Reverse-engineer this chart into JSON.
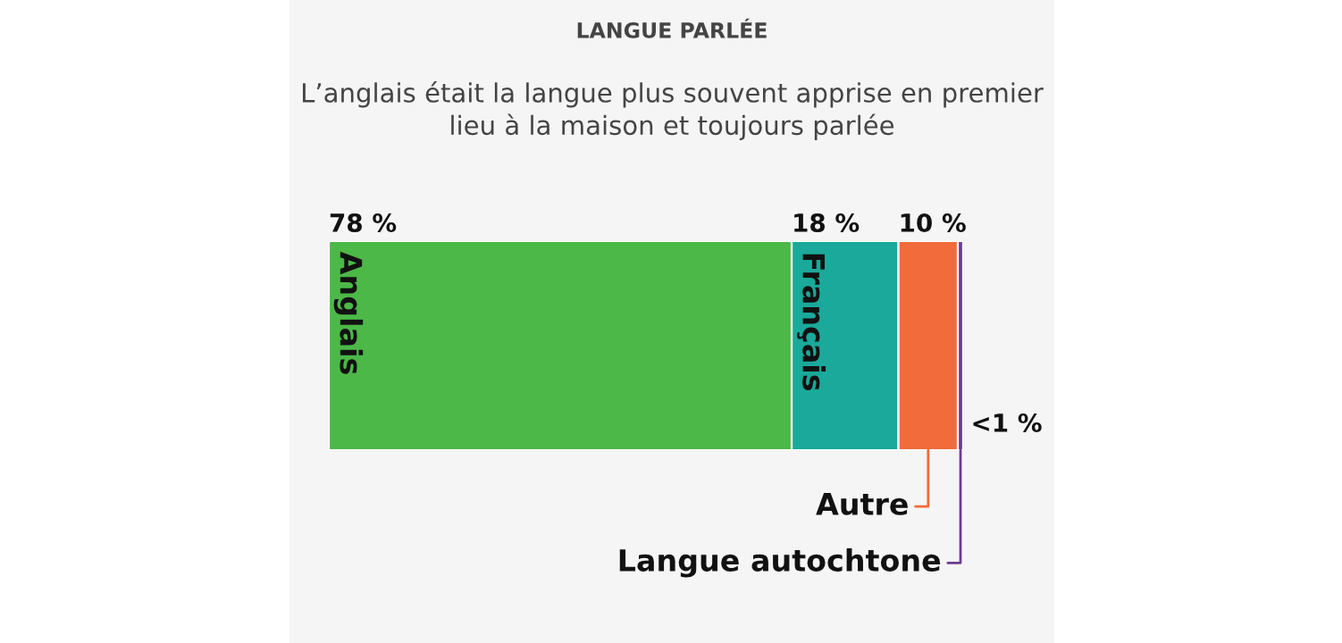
{
  "chart_data": {
    "type": "bar",
    "orientation": "horizontal",
    "stacked": true,
    "title": "LANGUE PARLÉE",
    "subtitle": "L’anglais était la langue plus souvent apprise en premier lieu à la maison et toujours parlée",
    "categories": [
      null
    ],
    "legend": false,
    "series": [
      {
        "name": "Anglais",
        "color": "#4cb848",
        "values": [
          78
        ],
        "value_labels": [
          "78 %"
        ]
      },
      {
        "name": "Français",
        "color": "#1aa99a",
        "values": [
          18
        ],
        "value_labels": [
          "18 %"
        ]
      },
      {
        "name": "Autre",
        "color": "#f26b3a",
        "values": [
          10
        ],
        "value_labels": [
          "10 %"
        ]
      },
      {
        "name": "Langue autochtone",
        "color": "#6a3d8f",
        "values": [
          0.9
        ],
        "value_labels": [
          "<1 %"
        ]
      }
    ]
  }
}
